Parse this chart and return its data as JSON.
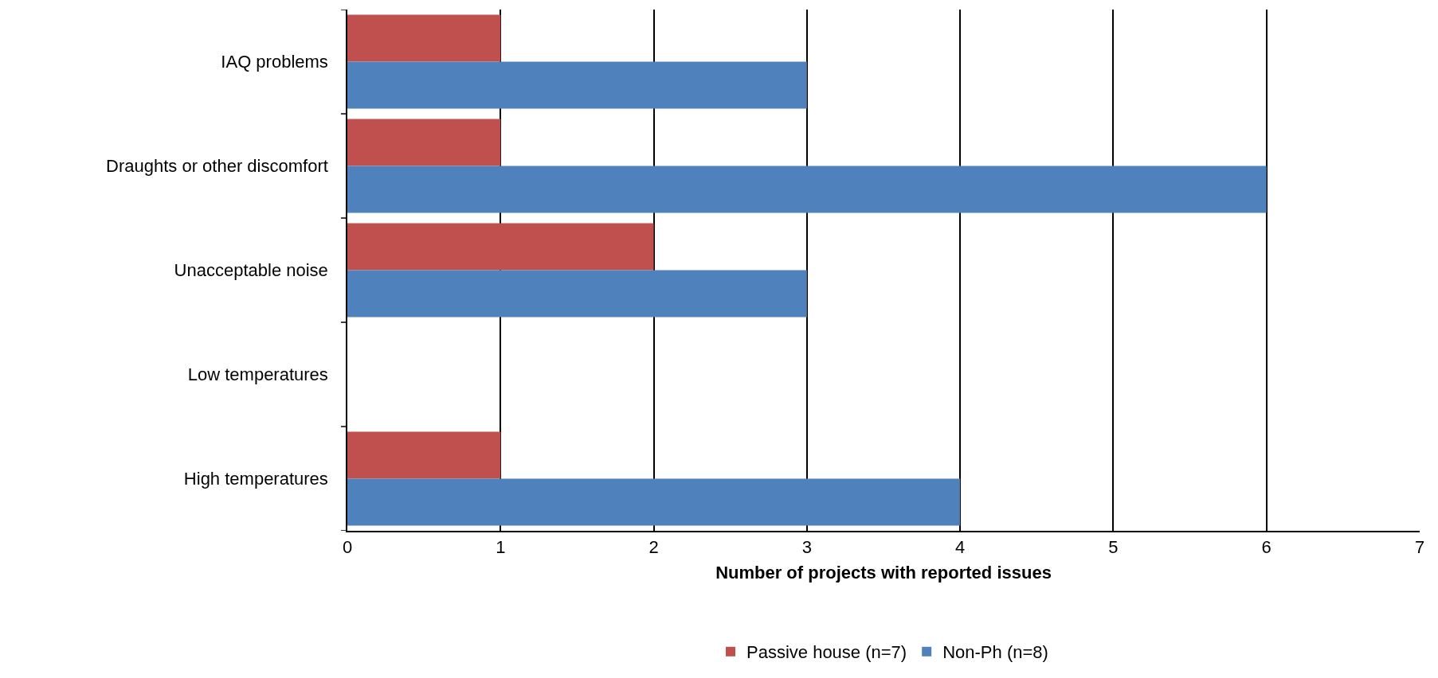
{
  "chart_data": {
    "type": "bar",
    "orientation": "horizontal",
    "xlabel": "Number of projects with reported issues",
    "categories": [
      "IAQ problems",
      "Draughts or other discomfort",
      "Unacceptable noise",
      "Low temperatures",
      "High temperatures"
    ],
    "series": [
      {
        "name": "Passive house (n=7)",
        "color": "#c0504d",
        "values": [
          1,
          1,
          2,
          0,
          1
        ]
      },
      {
        "name": "Non-Ph (n=8)",
        "color": "#4f81bd",
        "values": [
          3,
          6,
          3,
          0,
          4
        ]
      }
    ],
    "xlim": [
      0,
      7
    ],
    "xticks": [
      0,
      1,
      2,
      3,
      4,
      5,
      6,
      7
    ],
    "grid": "x",
    "legend": "bottom"
  }
}
